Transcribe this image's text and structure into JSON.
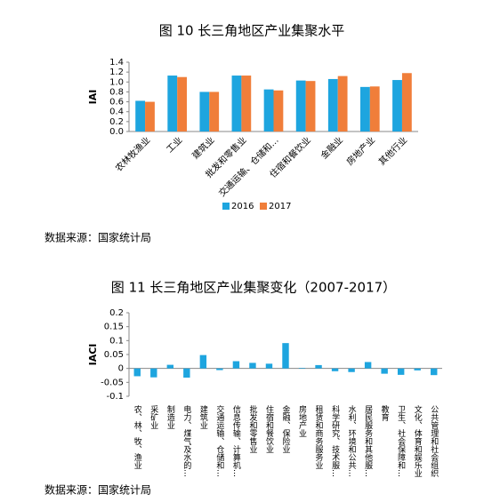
{
  "chart_data": [
    {
      "type": "bar",
      "title": "图 10 长三角地区产业集聚水平",
      "y_label": "IAI",
      "categories": [
        "农林牧渔业",
        "工业",
        "建筑业",
        "批发和零售业",
        "交通运输、仓储和…",
        "住宿和餐饮业",
        "金融业",
        "房地产业",
        "其他行业"
      ],
      "series": [
        {
          "name": "2016",
          "color": "#1ea5df",
          "values": [
            0.62,
            1.13,
            0.8,
            1.13,
            0.85,
            1.03,
            1.06,
            0.9,
            1.04
          ]
        },
        {
          "name": "2017",
          "color": "#f07e3a",
          "values": [
            0.6,
            1.1,
            0.8,
            1.13,
            0.83,
            1.02,
            1.12,
            0.91,
            1.18
          ]
        }
      ],
      "ylim": [
        0,
        1.4
      ],
      "yticks": [
        {
          "value": 0,
          "label": "0.0"
        },
        0.2,
        0.4,
        0.6,
        0.8,
        {
          "value": 1,
          "label": "1.0"
        },
        1.2,
        1.4
      ],
      "legend": "bottom",
      "source": "数据来源：国家统计局"
    },
    {
      "type": "bar",
      "title": "图 11 长三角地区产业集聚变化（2007-2017）",
      "y_label": "IACI",
      "categories": [
        "农、林、牧、渔业",
        "采矿业",
        "制造业",
        "电力、煤气及水的…",
        "建筑业",
        "交通运输、仓储和…",
        "信息传输、计算机…",
        "批发和零售业",
        "住宿和餐饮业",
        "金融、保险业",
        "房地产业",
        "租赁和商务服务业",
        "科学研究、技术服…",
        "水利、环境和公共…",
        "居民服务和其他服…",
        "教育",
        "卫生、社会保障和…",
        "文化、体育和娱乐业",
        "公共管理和社会组织"
      ],
      "series": [
        {
          "name": "IACI",
          "color": "#1ea5df",
          "values": [
            -0.028,
            -0.032,
            0.013,
            -0.033,
            0.048,
            -0.006,
            0.026,
            0.02,
            0.017,
            0.091,
            0.002,
            0.012,
            -0.01,
            -0.013,
            0.023,
            -0.019,
            -0.023,
            -0.007,
            -0.024
          ]
        }
      ],
      "ylim": [
        -0.1,
        0.2
      ],
      "yticks": [
        -0.1,
        -0.05,
        0,
        0.05,
        0.1,
        0.15,
        0.2
      ],
      "source": "数据来源：国家统计局"
    }
  ]
}
